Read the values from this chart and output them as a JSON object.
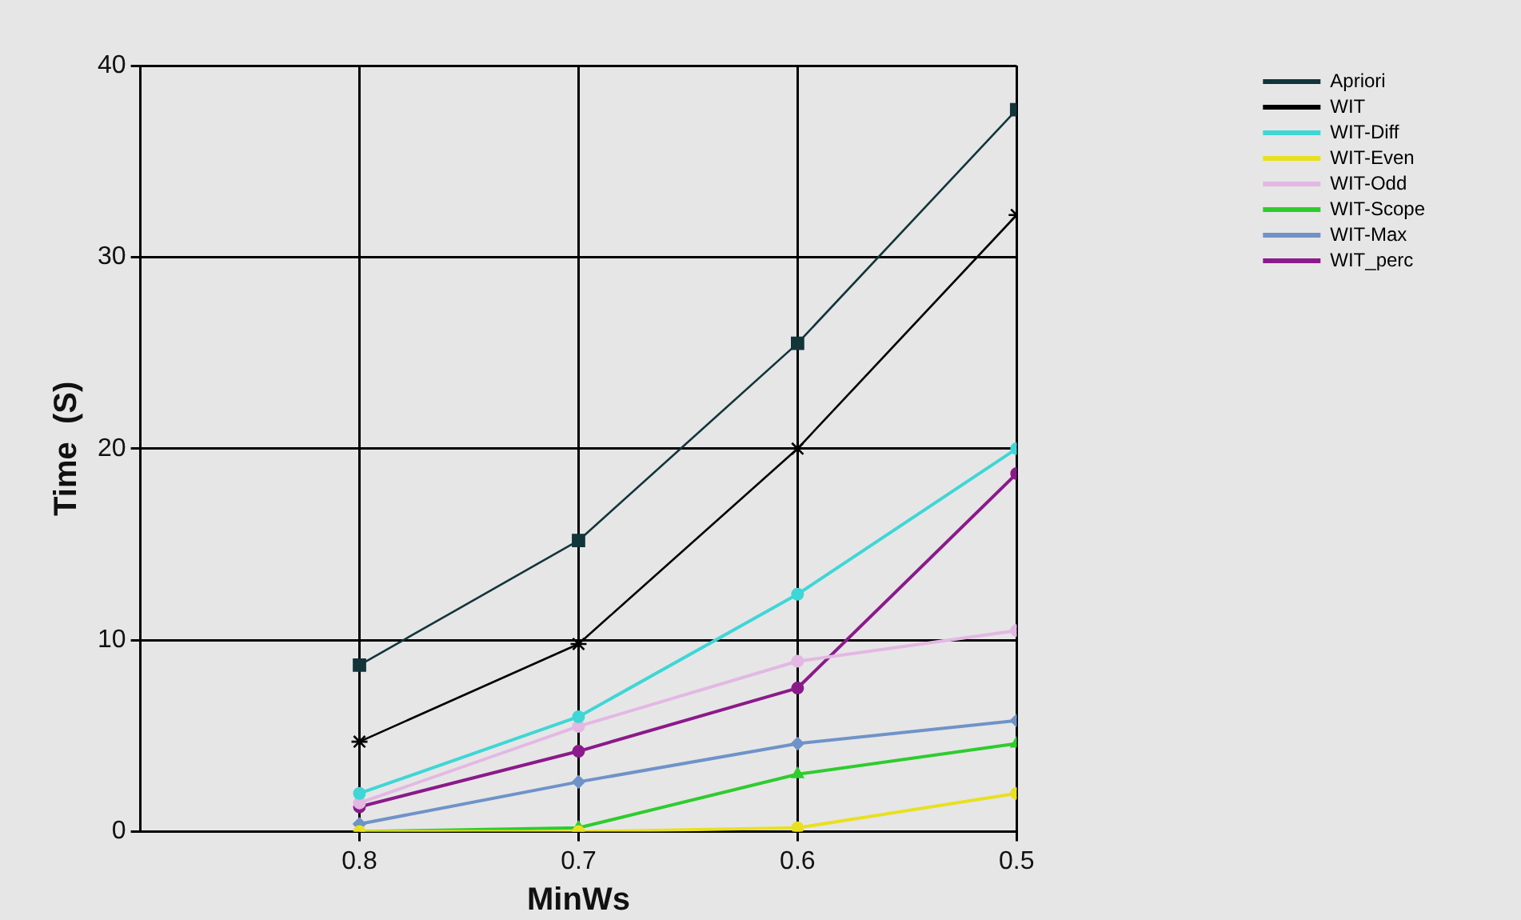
{
  "chart_data": {
    "type": "line",
    "xlabel": "MinWs",
    "ylabel": "Time  (S)",
    "x": [
      0.8,
      0.7,
      0.6,
      0.5
    ],
    "xlim": [
      0.9,
      0.5
    ],
    "xticks": [
      0.8,
      0.7,
      0.6,
      0.5
    ],
    "ylim": [
      0,
      40
    ],
    "yticks": [
      0,
      10,
      20,
      30,
      40
    ],
    "grid": true,
    "legend": "top right",
    "line_style": "solid",
    "series": [
      {
        "name": "Apriori",
        "color": "#12353a",
        "marker": "square",
        "values": [
          8.7,
          15.2,
          25.5,
          37.7
        ]
      },
      {
        "name": "WIT",
        "color": "#000000",
        "marker": "cross",
        "values": [
          4.7,
          9.8,
          20,
          32.2
        ]
      },
      {
        "name": "WIT-Diff",
        "color": "#3fd6d6",
        "marker": "circle",
        "values": [
          2.0,
          6.0,
          12.4,
          20
        ]
      },
      {
        "name": "WIT-Even",
        "color": "#e8e020",
        "marker": "circle",
        "values": [
          0,
          0,
          0.2,
          2.0
        ]
      },
      {
        "name": "WIT-Odd",
        "color": "#e3b8e3",
        "marker": "circle",
        "values": [
          1.5,
          5.5,
          8.9,
          10.5
        ]
      },
      {
        "name": "WIT-Scope",
        "color": "#2ecc2e",
        "marker": "triangle",
        "values": [
          0,
          0.2,
          3.0,
          4.6
        ]
      },
      {
        "name": "WIT-Max",
        "color": "#6f93c8",
        "marker": "diamond",
        "values": [
          0.4,
          2.6,
          4.6,
          5.8
        ]
      },
      {
        "name": "WIT_perc",
        "color": "#8b1a8b",
        "marker": "circle",
        "values": [
          1.3,
          4.2,
          7.5,
          18.7
        ]
      }
    ]
  }
}
